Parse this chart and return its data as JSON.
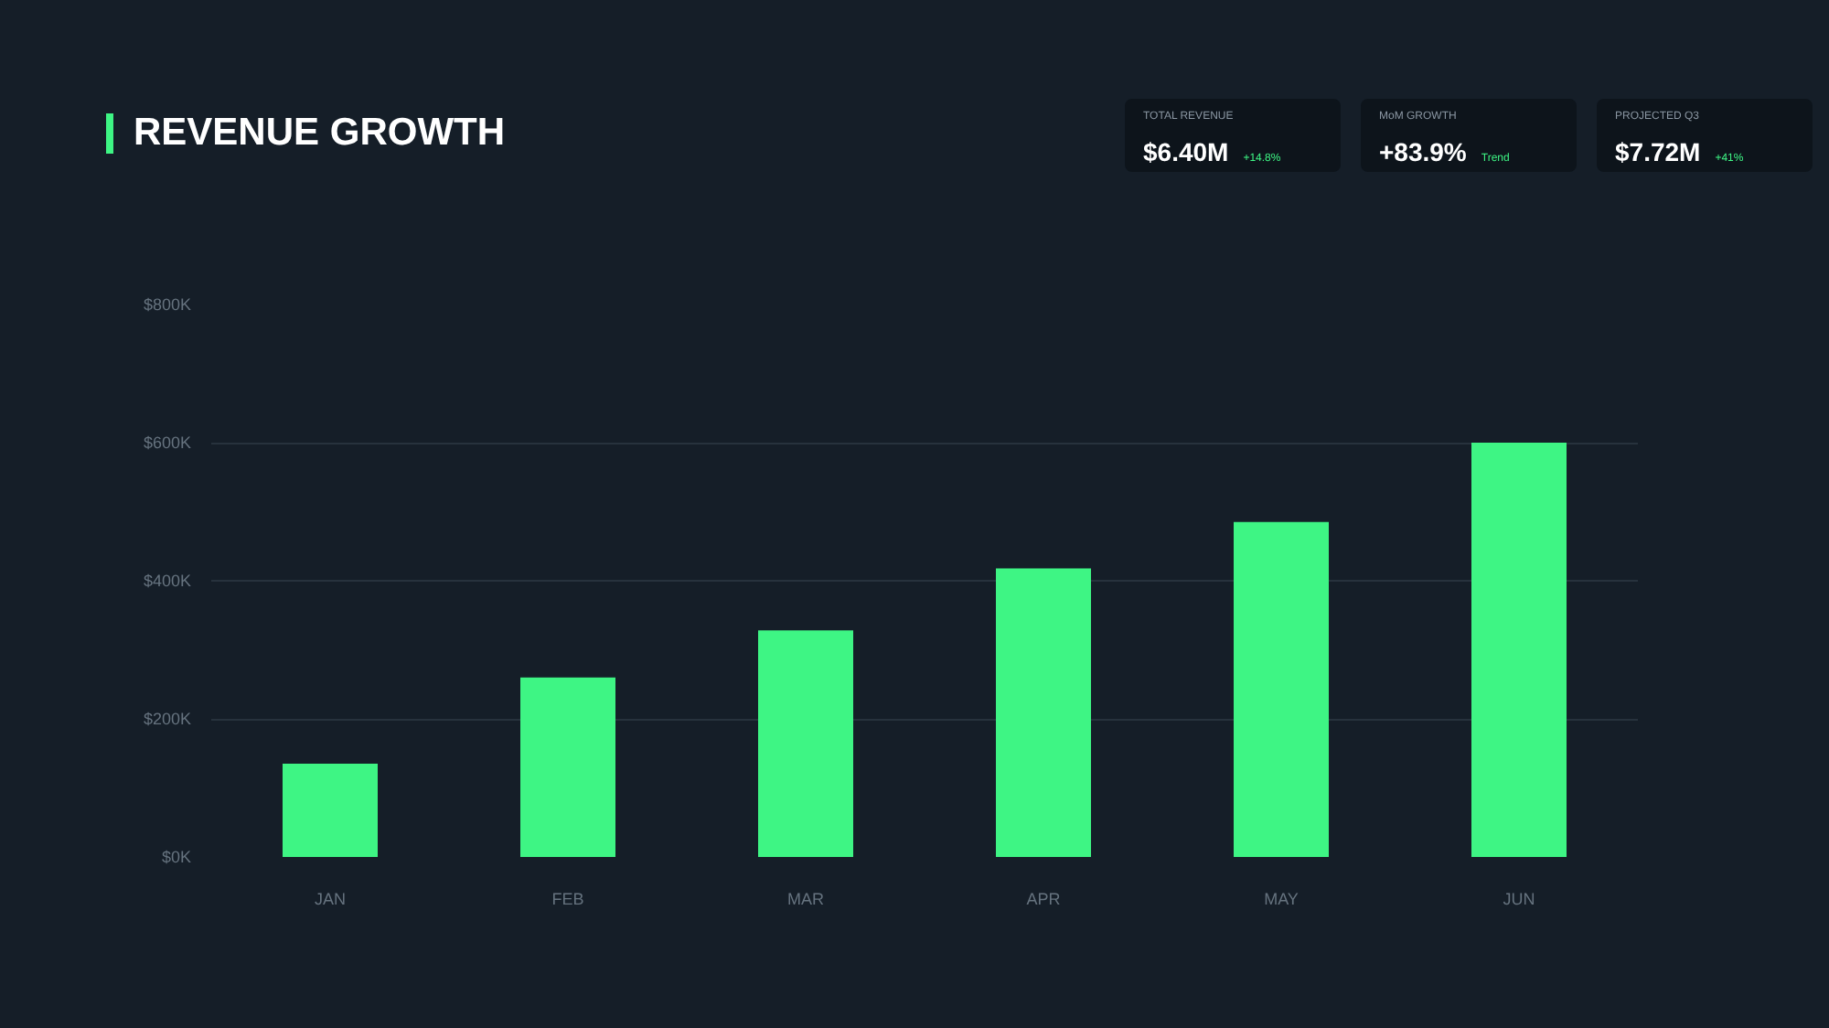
{
  "chart_data": {
    "type": "bar",
    "title": "REVENUE GROWTH",
    "categories": [
      "JAN",
      "FEB",
      "MAR",
      "APR",
      "MAY",
      "JUN"
    ],
    "values": [
      135,
      260,
      328,
      418,
      485,
      600
    ],
    "color": "#3ef584",
    "ylim": [
      0,
      800
    ],
    "yticks": [
      {
        "value": 0,
        "label": "$0K"
      },
      {
        "value": 200,
        "label": "$200K"
      },
      {
        "value": 400,
        "label": "$400K"
      },
      {
        "value": 600,
        "label": "$600K"
      },
      {
        "value": 800,
        "label": "$800K"
      }
    ],
    "grid": "y",
    "annotations": [
      "TOTAL REVENUE",
      "$6.40M",
      "+14.8%",
      "MoM GROWTH",
      "+83.9%",
      "Trend",
      "PROJECTED Q3",
      "$7.72M",
      "+41%"
    ]
  }
}
